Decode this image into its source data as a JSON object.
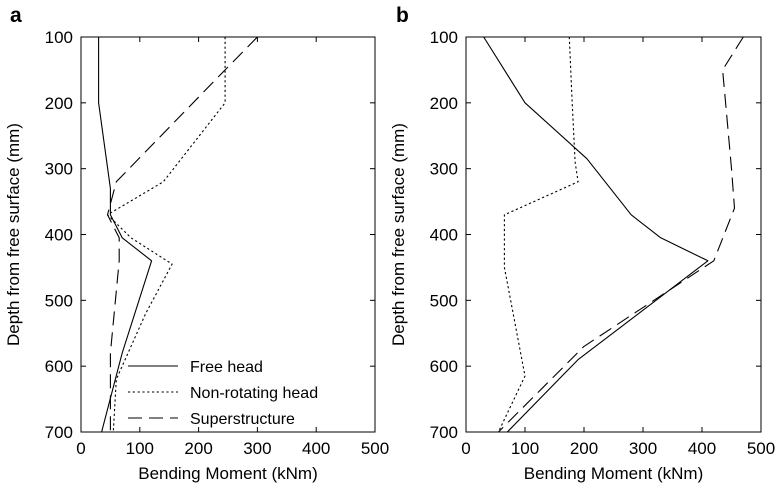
{
  "chart_data": [
    {
      "type": "line",
      "panel_label": "a",
      "xlabel": "Bending Moment (kNm)",
      "ylabel": "Depth from free surface (mm)",
      "xlim": [
        0,
        500
      ],
      "ylim": [
        100,
        700
      ],
      "y_inverted": true,
      "xticks": [
        0,
        100,
        200,
        300,
        400,
        500
      ],
      "yticks": [
        100,
        200,
        300,
        400,
        500,
        600,
        700
      ],
      "grid": false,
      "legend_position": "bottom-right",
      "series": [
        {
          "name": "Free head",
          "dash": "solid",
          "x": [
            30,
            30,
            50,
            50,
            70,
            120,
            70,
            35
          ],
          "y": [
            100,
            200,
            330,
            370,
            405,
            440,
            580,
            700
          ]
        },
        {
          "name": "Non-rotating head",
          "dash": "dotted",
          "x": [
            245,
            245,
            140,
            45,
            85,
            155,
            110,
            60,
            55
          ],
          "y": [
            100,
            200,
            320,
            370,
            405,
            445,
            520,
            620,
            700
          ]
        },
        {
          "name": "Superstructure",
          "dash": "dashed",
          "x": [
            300,
            245,
            60,
            45,
            65,
            65,
            50,
            50
          ],
          "y": [
            100,
            150,
            320,
            370,
            405,
            440,
            580,
            700
          ]
        }
      ]
    },
    {
      "type": "line",
      "panel_label": "b",
      "xlabel": "Bending Moment (kNm)",
      "ylabel": "Depth from free surface (mm)",
      "xlim": [
        0,
        500
      ],
      "ylim": [
        100,
        700
      ],
      "y_inverted": true,
      "xticks": [
        0,
        100,
        200,
        300,
        400,
        500
      ],
      "yticks": [
        100,
        200,
        300,
        400,
        500,
        600,
        700
      ],
      "grid": false,
      "series": [
        {
          "name": "Free head",
          "dash": "solid",
          "x": [
            30,
            100,
            205,
            280,
            330,
            410,
            190,
            70
          ],
          "y": [
            100,
            200,
            285,
            370,
            405,
            440,
            590,
            700
          ]
        },
        {
          "name": "Non-rotating head",
          "dash": "dotted",
          "x": [
            175,
            180,
            185,
            190,
            65,
            65,
            100,
            55
          ],
          "y": [
            100,
            200,
            290,
            320,
            370,
            450,
            615,
            700
          ]
        },
        {
          "name": "Superstructure",
          "dash": "dashed",
          "x": [
            470,
            435,
            440,
            450,
            455,
            420,
            200,
            55
          ],
          "y": [
            100,
            150,
            200,
            300,
            360,
            440,
            570,
            700
          ]
        }
      ]
    }
  ],
  "legend": {
    "entries": [
      "Free head",
      "Non-rotating head",
      "Superstructure"
    ]
  }
}
